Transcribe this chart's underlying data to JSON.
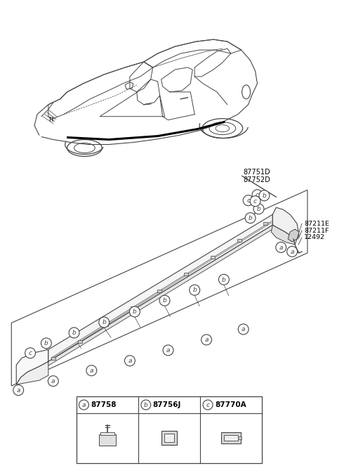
{
  "bg_color": "#ffffff",
  "gray": "#444444",
  "lgray": "#888888",
  "legend_items": [
    {
      "key": "a",
      "part": "87758"
    },
    {
      "key": "b",
      "part": "87756J"
    },
    {
      "key": "c",
      "part": "87770A"
    }
  ],
  "callout_right": [
    "87751D",
    "87752D"
  ],
  "side_callout": [
    "87211E",
    "87211F",
    "12492"
  ],
  "car_region": [
    20,
    10,
    370,
    230
  ],
  "sill_region": [
    15,
    255,
    460,
    555
  ],
  "legend_region": [
    108,
    565,
    375,
    660
  ]
}
